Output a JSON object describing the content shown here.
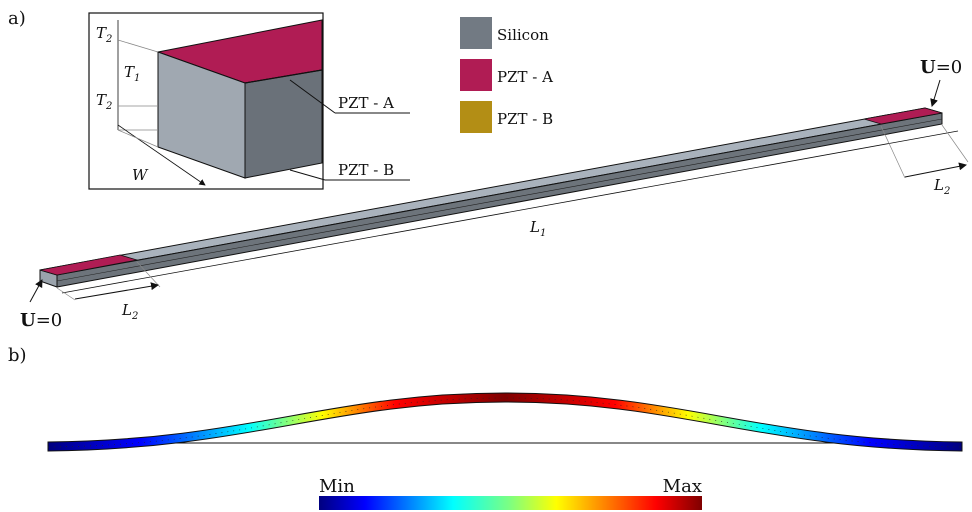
{
  "panel_a_label": "a)",
  "panel_b_label": "b)",
  "legend": [
    {
      "name": "Silicon",
      "color": "#727a83"
    },
    {
      "name": "PZT - A",
      "color": "#b01c54"
    },
    {
      "name": "PZT - B",
      "color": "#b38e15"
    }
  ],
  "inset": {
    "callout_a": "PZT - A",
    "callout_b": "PZT - B",
    "dim_t2": "T",
    "dim_t2_sub": "2",
    "dim_t1": "T",
    "dim_t1_sub": "1",
    "dim_w": "W"
  },
  "beam": {
    "bc_bold": "U",
    "bc_rest": "=0",
    "l1": "L",
    "l1_sub": "1",
    "l2": "L",
    "l2_sub": "2"
  },
  "colorbar": {
    "min_label": "Min",
    "max_label": "Max"
  },
  "colors": {
    "silicon_top": "#a9b2bc",
    "silicon_side": "#6d747b",
    "pzt_a": "#b01c54",
    "outline": "#111111"
  }
}
